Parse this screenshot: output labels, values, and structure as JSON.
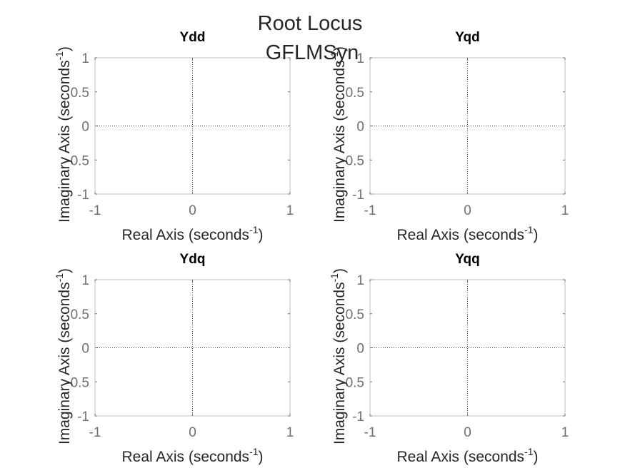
{
  "figure": {
    "title": "Root Locus",
    "subtitle": "GFLMSyn",
    "colors": {
      "axes_box": "#bfbfbf",
      "ticks": "#707070",
      "labels": "#262626",
      "zero_lines": "#404040"
    }
  },
  "chart_data": [
    {
      "type": "scatter",
      "title": "Ydd",
      "xlabel": "Real Axis (seconds",
      "xlabel_exp": "-1",
      "xlabel_end": ")",
      "ylabel": "Imaginary Axis (seconds",
      "ylabel_exp": "-1",
      "ylabel_end": ")",
      "xlim": [
        -1,
        1
      ],
      "ylim": [
        -1,
        1
      ],
      "xticks": [
        -1,
        0,
        1
      ],
      "xtick_labels": [
        "-1",
        "0",
        "1"
      ],
      "yticks": [
        -1,
        -0.5,
        0,
        0.5,
        1
      ],
      "ytick_labels": [
        "-1",
        "-0.5",
        "0",
        "0.5",
        "1"
      ],
      "grid": false,
      "zero_lines": true,
      "series": []
    },
    {
      "type": "scatter",
      "title": "Yqd",
      "xlabel": "Real Axis (seconds",
      "xlabel_exp": "-1",
      "xlabel_end": ")",
      "ylabel": "Imaginary Axis (seconds",
      "ylabel_exp": "-1",
      "ylabel_end": ")",
      "xlim": [
        -1,
        1
      ],
      "ylim": [
        -1,
        1
      ],
      "xticks": [
        -1,
        0,
        1
      ],
      "xtick_labels": [
        "-1",
        "0",
        "1"
      ],
      "yticks": [
        -1,
        -0.5,
        0,
        0.5,
        1
      ],
      "ytick_labels": [
        "-1",
        "-0.5",
        "0",
        "0.5",
        "1"
      ],
      "grid": false,
      "zero_lines": true,
      "series": []
    },
    {
      "type": "scatter",
      "title": "Ydq",
      "xlabel": "Real Axis (seconds",
      "xlabel_exp": "-1",
      "xlabel_end": ")",
      "ylabel": "Imaginary Axis (seconds",
      "ylabel_exp": "-1",
      "ylabel_end": ")",
      "xlim": [
        -1,
        1
      ],
      "ylim": [
        -1,
        1
      ],
      "xticks": [
        -1,
        0,
        1
      ],
      "xtick_labels": [
        "-1",
        "0",
        "1"
      ],
      "yticks": [
        -1,
        -0.5,
        0,
        0.5,
        1
      ],
      "ytick_labels": [
        "-1",
        "-0.5",
        "0",
        "0.5",
        "1"
      ],
      "grid": false,
      "zero_lines": true,
      "series": []
    },
    {
      "type": "scatter",
      "title": "Yqq",
      "xlabel": "Real Axis (seconds",
      "xlabel_exp": "-1",
      "xlabel_end": ")",
      "ylabel": "Imaginary Axis (seconds",
      "ylabel_exp": "-1",
      "ylabel_end": ")",
      "xlim": [
        -1,
        1
      ],
      "ylim": [
        -1,
        1
      ],
      "xticks": [
        -1,
        0,
        1
      ],
      "xtick_labels": [
        "-1",
        "0",
        "1"
      ],
      "yticks": [
        -1,
        -0.5,
        0,
        0.5,
        1
      ],
      "ytick_labels": [
        "-1",
        "-0.5",
        "0",
        "0.5",
        "1"
      ],
      "grid": false,
      "zero_lines": true,
      "series": []
    }
  ]
}
